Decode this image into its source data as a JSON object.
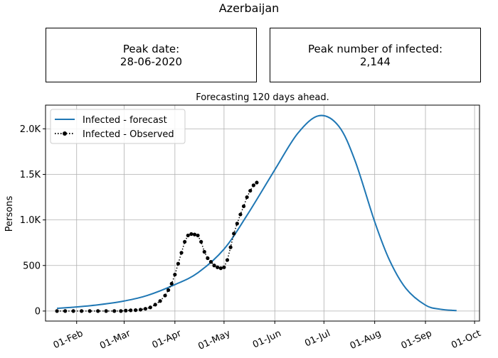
{
  "page": {
    "title": "Azerbaijan",
    "peak_date_label": "Peak date:",
    "peak_date_value": "28-06-2020",
    "peak_infected_label": "Peak number of infected:",
    "peak_infected_value": "2,144"
  },
  "chart_data": {
    "type": "line",
    "title": "Forecasting 120 days ahead.",
    "xlabel": "",
    "ylabel": "Persons",
    "x_ticks": [
      "01-Feb",
      "01-Mar",
      "01-Apr",
      "01-May",
      "01-Jun",
      "01-Jul",
      "01-Aug",
      "01-Sep",
      "01-Oct"
    ],
    "y_ticks": [
      "0",
      "500",
      "1.0K",
      "1.5K",
      "2.0K"
    ],
    "xlim": [
      "2020-01-13",
      "2020-10-04"
    ],
    "ylim": [
      -110,
      2260
    ],
    "grid": true,
    "legend_position": "top-left",
    "colors": {
      "forecast": "#1f77b4",
      "observed": "#000000"
    },
    "series": [
      {
        "name": "Infected - forecast",
        "style": "solid",
        "x": [
          "2020-01-20",
          "2020-02-01",
          "2020-02-15",
          "2020-03-01",
          "2020-03-15",
          "2020-04-01",
          "2020-04-15",
          "2020-05-01",
          "2020-05-15",
          "2020-06-01",
          "2020-06-15",
          "2020-06-28",
          "2020-07-10",
          "2020-07-20",
          "2020-08-01",
          "2020-08-10",
          "2020-08-20",
          "2020-09-01",
          "2020-09-10",
          "2020-09-20"
        ],
        "values": [
          30,
          45,
          70,
          110,
          170,
          290,
          420,
          680,
          1050,
          1550,
          1950,
          2144,
          2030,
          1650,
          980,
          560,
          250,
          65,
          20,
          5
        ]
      },
      {
        "name": "Infected - Observed",
        "style": "dotted-markers",
        "x": [
          "2020-01-20",
          "2020-01-25",
          "2020-01-30",
          "2020-02-04",
          "2020-02-09",
          "2020-02-14",
          "2020-02-19",
          "2020-02-24",
          "2020-02-28",
          "2020-03-02",
          "2020-03-05",
          "2020-03-08",
          "2020-03-11",
          "2020-03-14",
          "2020-03-17",
          "2020-03-20",
          "2020-03-23",
          "2020-03-26",
          "2020-03-28",
          "2020-03-30",
          "2020-04-01",
          "2020-04-03",
          "2020-04-05",
          "2020-04-07",
          "2020-04-09",
          "2020-04-11",
          "2020-04-13",
          "2020-04-15",
          "2020-04-17",
          "2020-04-19",
          "2020-04-21",
          "2020-04-23",
          "2020-04-25",
          "2020-04-27",
          "2020-04-29",
          "2020-05-01",
          "2020-05-03",
          "2020-05-05",
          "2020-05-07",
          "2020-05-09",
          "2020-05-11",
          "2020-05-13",
          "2020-05-15",
          "2020-05-17",
          "2020-05-19",
          "2020-05-21"
        ],
        "values": [
          0,
          0,
          0,
          0,
          0,
          0,
          0,
          0,
          0,
          5,
          8,
          10,
          15,
          25,
          40,
          70,
          110,
          170,
          230,
          300,
          400,
          520,
          640,
          760,
          830,
          845,
          840,
          830,
          760,
          650,
          580,
          540,
          500,
          480,
          470,
          480,
          560,
          700,
          850,
          960,
          1060,
          1150,
          1250,
          1320,
          1380,
          1410
        ]
      }
    ]
  }
}
